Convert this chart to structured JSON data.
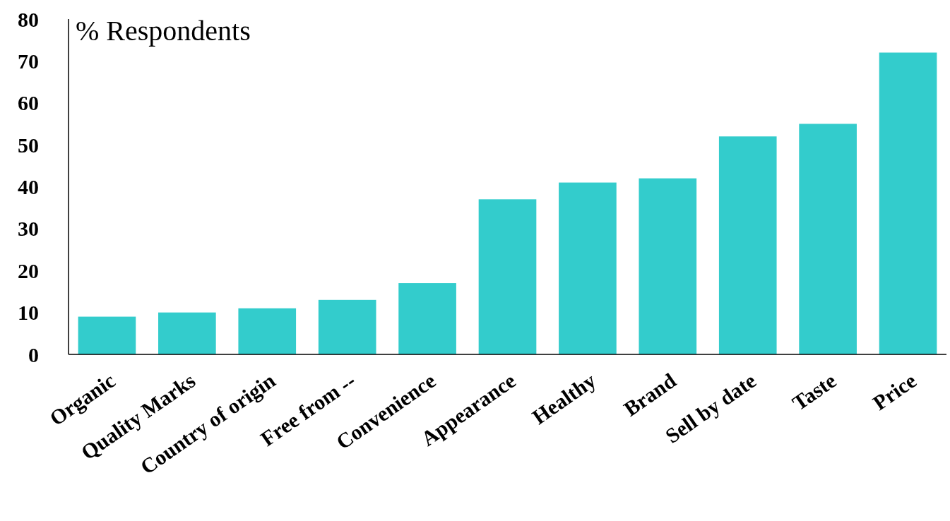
{
  "chart_data": {
    "type": "bar",
    "ylabel": "% Respondents",
    "categories": [
      "Organic",
      "Quality Marks",
      "Country of  origin",
      "Free from --",
      "Convenience",
      "Appearance",
      "Healthy",
      "Brand",
      "Sell by date",
      "Taste",
      "Price"
    ],
    "values": [
      9,
      10,
      11,
      13,
      17,
      37,
      41,
      42,
      52,
      55,
      72
    ],
    "color": "#33cccc",
    "ylim": [
      0,
      80
    ],
    "yticks": [
      0,
      10,
      20,
      30,
      40,
      50,
      60,
      70,
      80
    ],
    "grid": false
  }
}
